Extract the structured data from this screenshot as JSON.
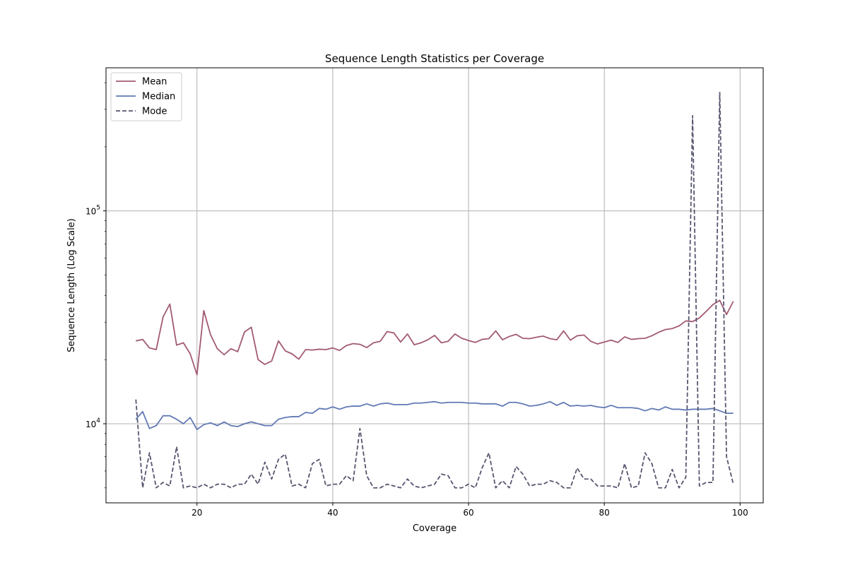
{
  "chart_data": {
    "type": "line",
    "title": "Sequence Length Statistics per Coverage",
    "xlabel": "Coverage",
    "ylabel": "Sequence Length (Log Scale)",
    "xlim": [
      6.6,
      103.4
    ],
    "ylim": [
      4250,
      470000
    ],
    "yscale": "log",
    "grid": true,
    "legend_position": "top-left",
    "x_ticks": [
      "20",
      "40",
      "60",
      "80",
      "100"
    ],
    "y_ticks": [
      {
        "value": 10000,
        "base": "10",
        "exp": "4"
      },
      {
        "value": 100000,
        "base": "10",
        "exp": "5"
      }
    ],
    "x": [
      11,
      12,
      13,
      14,
      15,
      16,
      17,
      18,
      19,
      20,
      21,
      22,
      23,
      24,
      25,
      26,
      27,
      28,
      29,
      30,
      31,
      32,
      33,
      34,
      35,
      36,
      37,
      38,
      39,
      40,
      41,
      42,
      43,
      44,
      45,
      46,
      47,
      48,
      49,
      50,
      51,
      52,
      53,
      54,
      55,
      56,
      57,
      58,
      59,
      60,
      61,
      62,
      63,
      64,
      65,
      66,
      67,
      68,
      69,
      70,
      71,
      72,
      73,
      74,
      75,
      76,
      77,
      78,
      79,
      80,
      81,
      82,
      83,
      84,
      85,
      86,
      87,
      88,
      89,
      90,
      91,
      92,
      93,
      94,
      95,
      96,
      97,
      98,
      99
    ],
    "series": [
      {
        "name": "Mean",
        "color": "#a25a75",
        "dash": "solid",
        "values": [
          24500,
          24900,
          22700,
          22300,
          31700,
          36500,
          23400,
          24000,
          21300,
          17000,
          34000,
          26200,
          22500,
          21100,
          22500,
          21800,
          27000,
          28400,
          20000,
          19000,
          19700,
          24500,
          22000,
          21300,
          20100,
          22300,
          22200,
          22400,
          22300,
          22700,
          22100,
          23300,
          23800,
          23600,
          22800,
          24000,
          24400,
          27100,
          26700,
          24200,
          26400,
          23500,
          24000,
          24800,
          26000,
          24000,
          24400,
          26400,
          25200,
          24600,
          24100,
          24900,
          25100,
          27300,
          24800,
          25700,
          26300,
          25200,
          25100,
          25500,
          25800,
          25100,
          24800,
          27300,
          24700,
          25900,
          26100,
          24400,
          23700,
          24200,
          24700,
          24100,
          25600,
          24900,
          25100,
          25200,
          25900,
          26900,
          27700,
          28000,
          28800,
          30400,
          30200,
          31400,
          33700,
          36300,
          38000,
          32600,
          37600
        ]
      },
      {
        "name": "Median",
        "color": "#6179b4",
        "dash": "solid",
        "values": [
          10500,
          11400,
          9500,
          9800,
          10900,
          10900,
          10500,
          10000,
          10700,
          9400,
          9900,
          10100,
          9800,
          10200,
          9800,
          9700,
          10000,
          10200,
          10000,
          9800,
          9800,
          10500,
          10700,
          10800,
          10800,
          11300,
          11200,
          11800,
          11700,
          12000,
          11700,
          12000,
          12100,
          12100,
          12400,
          12100,
          12400,
          12500,
          12300,
          12300,
          12300,
          12500,
          12500,
          12600,
          12700,
          12500,
          12600,
          12600,
          12600,
          12500,
          12500,
          12400,
          12400,
          12400,
          12100,
          12600,
          12600,
          12400,
          12100,
          12200,
          12400,
          12700,
          12200,
          12600,
          12100,
          12200,
          12100,
          12200,
          12000,
          11900,
          12200,
          11900,
          11900,
          11900,
          11800,
          11500,
          11800,
          11600,
          12000,
          11700,
          11700,
          11600,
          11700,
          11700,
          11700,
          11800,
          11500,
          11200,
          11200
        ]
      },
      {
        "name": "Mode",
        "color": "#565670",
        "dash": "dashed",
        "values": [
          13000,
          5000,
          7300,
          5000,
          5300,
          5100,
          7800,
          5000,
          5100,
          5000,
          5200,
          5000,
          5200,
          5200,
          5000,
          5200,
          5200,
          5800,
          5200,
          6600,
          5500,
          6800,
          7200,
          5100,
          5200,
          5000,
          6500,
          6800,
          5100,
          5200,
          5200,
          5700,
          5400,
          9500,
          5700,
          5000,
          5000,
          5200,
          5100,
          5000,
          5500,
          5100,
          5000,
          5100,
          5200,
          5800,
          5700,
          5000,
          5000,
          5200,
          5000,
          6200,
          7300,
          5000,
          5400,
          5000,
          6300,
          5800,
          5100,
          5200,
          5200,
          5400,
          5300,
          5000,
          5000,
          6200,
          5500,
          5500,
          5100,
          5100,
          5100,
          5000,
          6500,
          5000,
          5100,
          7300,
          6500,
          5000,
          5000,
          6100,
          5000,
          5600,
          280000,
          5100,
          5300,
          5300,
          360000,
          7000,
          5200
        ]
      }
    ]
  }
}
